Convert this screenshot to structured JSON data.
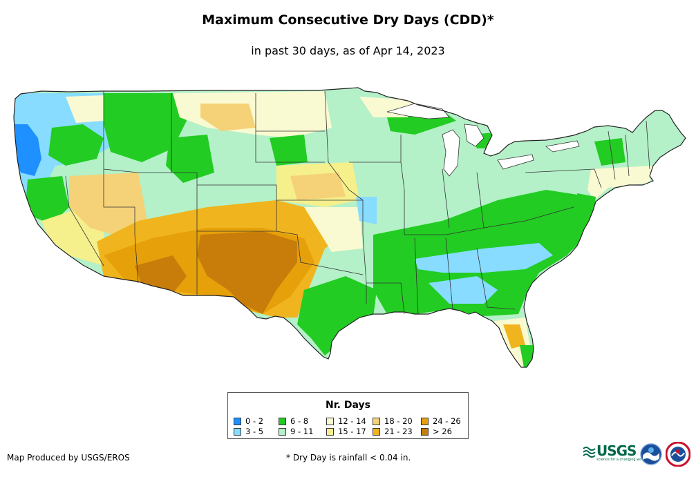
{
  "title": "Maximum Consecutive Dry Days (CDD)*",
  "subtitle": "in past 30 days, as of Apr 14, 2023",
  "legend": {
    "title": "Nr. Days",
    "items": [
      {
        "label": "0 - 2",
        "color": "#1e90ff"
      },
      {
        "label": "3 - 5",
        "color": "#87dcff"
      },
      {
        "label": "6 - 8",
        "color": "#22cc22"
      },
      {
        "label": "9 - 11",
        "color": "#b4f0c8"
      },
      {
        "label": "12 - 14",
        "color": "#fafad2"
      },
      {
        "label": "15 - 17",
        "color": "#f5f08c"
      },
      {
        "label": "18 - 20",
        "color": "#f5d278"
      },
      {
        "label": "21 - 23",
        "color": "#f0b41e"
      },
      {
        "label": "24 - 26",
        "color": "#e6a00a"
      },
      {
        "label": "> 26",
        "color": "#c87d0a"
      }
    ]
  },
  "footer": {
    "credit": "Map Produced by USGS/EROS",
    "note": "* Dry Day is rainfall < 0.04 in."
  },
  "logos": {
    "usgs_text": "USGS",
    "usgs_tagline": "science for a changing world"
  }
}
